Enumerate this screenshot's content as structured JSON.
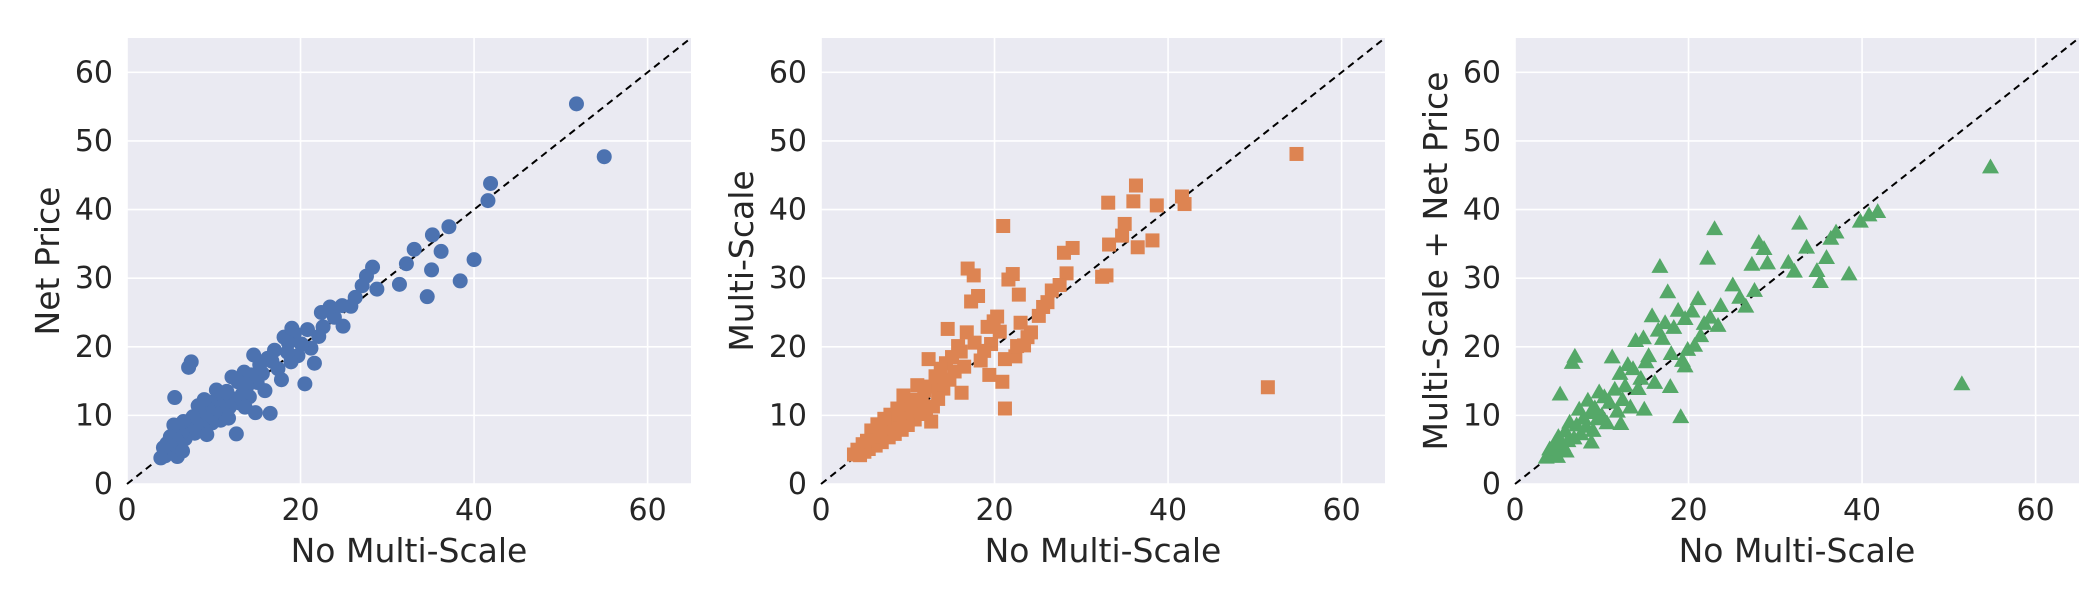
{
  "colors": {
    "background": "#eaeaf2",
    "grid": "#ffffff",
    "diagonal": "#000000"
  },
  "chart_data": [
    {
      "type": "scatter",
      "xlabel": "No Multi-Scale",
      "ylabel": "Net Price",
      "xlim": [
        0,
        65
      ],
      "ylim": [
        0,
        65
      ],
      "xticks": [
        0,
        20,
        40,
        60
      ],
      "yticks": [
        0,
        10,
        20,
        30,
        40,
        50,
        60
      ],
      "grid": true,
      "reference_line": "y = x (dashed)",
      "marker": "circle",
      "color": "#4c72b0",
      "points": [
        [
          51.8,
          55.4
        ],
        [
          55.0,
          47.7
        ],
        [
          41.9,
          43.8
        ],
        [
          41.6,
          41.3
        ],
        [
          40.0,
          32.7
        ],
        [
          38.4,
          29.6
        ],
        [
          37.1,
          37.5
        ],
        [
          36.2,
          33.9
        ],
        [
          35.2,
          36.3
        ],
        [
          35.1,
          31.2
        ],
        [
          34.6,
          27.3
        ],
        [
          33.1,
          34.2
        ],
        [
          32.2,
          32.1
        ],
        [
          31.4,
          29.1
        ],
        [
          28.8,
          28.4
        ],
        [
          28.3,
          31.6
        ],
        [
          27.6,
          30.3
        ],
        [
          27.1,
          28.9
        ],
        [
          26.3,
          27.2
        ],
        [
          25.8,
          25.9
        ],
        [
          24.8,
          26.0
        ],
        [
          24.9,
          23.0
        ],
        [
          23.9,
          24.3
        ],
        [
          23.4,
          25.8
        ],
        [
          22.6,
          22.9
        ],
        [
          22.1,
          21.5
        ],
        [
          21.6,
          17.6
        ],
        [
          21.2,
          19.8
        ],
        [
          20.8,
          22.5
        ],
        [
          20.5,
          14.6
        ],
        [
          20.1,
          20.4
        ],
        [
          19.7,
          18.7
        ],
        [
          19.3,
          22.0
        ],
        [
          18.9,
          17.8
        ],
        [
          18.5,
          19.2
        ],
        [
          18.1,
          21.4
        ],
        [
          17.8,
          15.2
        ],
        [
          17.4,
          16.8
        ],
        [
          17.0,
          19.5
        ],
        [
          16.5,
          10.3
        ],
        [
          16.7,
          17.9
        ],
        [
          16.2,
          18.3
        ],
        [
          15.9,
          13.6
        ],
        [
          15.6,
          16.1
        ],
        [
          15.3,
          17.4
        ],
        [
          15.0,
          14.8
        ],
        [
          14.8,
          10.4
        ],
        [
          14.6,
          18.8
        ],
        [
          14.3,
          15.9
        ],
        [
          14.1,
          12.7
        ],
        [
          13.8,
          14.2
        ],
        [
          13.5,
          16.3
        ],
        [
          13.3,
          13.1
        ],
        [
          13.0,
          11.8
        ],
        [
          12.8,
          14.9
        ],
        [
          12.6,
          7.3
        ],
        [
          12.3,
          12.4
        ],
        [
          12.1,
          15.6
        ],
        [
          11.8,
          11.2
        ],
        [
          11.5,
          13.5
        ],
        [
          11.3,
          10.1
        ],
        [
          11.0,
          12.9
        ],
        [
          10.8,
          9.3
        ],
        [
          10.5,
          11.6
        ],
        [
          10.3,
          13.7
        ],
        [
          10.1,
          10.5
        ],
        [
          9.8,
          8.9
        ],
        [
          9.6,
          11.9
        ],
        [
          9.4,
          10.8
        ],
        [
          9.1,
          9.6
        ],
        [
          8.9,
          12.3
        ],
        [
          8.7,
          8.2
        ],
        [
          8.4,
          10.1
        ],
        [
          8.2,
          11.4
        ],
        [
          8.0,
          8.7
        ],
        [
          7.8,
          7.4
        ],
        [
          7.6,
          9.8
        ],
        [
          7.4,
          17.8
        ],
        [
          7.1,
          17.0
        ],
        [
          6.9,
          8.1
        ],
        [
          6.7,
          6.6
        ],
        [
          6.5,
          9.1
        ],
        [
          6.3,
          7.5
        ],
        [
          6.1,
          5.8
        ],
        [
          5.9,
          7.9
        ],
        [
          5.7,
          6.4
        ],
        [
          5.5,
          12.6
        ],
        [
          5.4,
          8.6
        ],
        [
          5.2,
          5.2
        ],
        [
          5.0,
          6.9
        ],
        [
          4.8,
          4.6
        ],
        [
          4.6,
          5.9
        ],
        [
          4.4,
          4.1
        ],
        [
          4.2,
          5.3
        ],
        [
          3.9,
          3.8
        ],
        [
          5.8,
          4.0
        ],
        [
          6.4,
          4.8
        ],
        [
          9.2,
          7.2
        ],
        [
          11.7,
          9.6
        ],
        [
          13.6,
          11.2
        ],
        [
          18.6,
          20.6
        ],
        [
          19.0,
          22.7
        ],
        [
          22.4,
          25.0
        ]
      ]
    },
    {
      "type": "scatter",
      "xlabel": "No Multi-Scale",
      "ylabel": "Multi-Scale",
      "xlim": [
        0,
        65
      ],
      "ylim": [
        0,
        65
      ],
      "xticks": [
        0,
        20,
        40,
        60
      ],
      "yticks": [
        0,
        10,
        20,
        30,
        40,
        50,
        60
      ],
      "grid": true,
      "reference_line": "y = x (dashed)",
      "marker": "square",
      "color": "#dd8452",
      "points": [
        [
          54.8,
          48.1
        ],
        [
          51.5,
          14.1
        ],
        [
          41.9,
          40.8
        ],
        [
          41.6,
          41.9
        ],
        [
          38.7,
          40.6
        ],
        [
          38.2,
          35.5
        ],
        [
          36.3,
          43.5
        ],
        [
          36.0,
          41.2
        ],
        [
          36.5,
          34.5
        ],
        [
          35.0,
          37.9
        ],
        [
          34.7,
          36.2
        ],
        [
          33.1,
          41.0
        ],
        [
          32.9,
          30.4
        ],
        [
          33.2,
          34.9
        ],
        [
          32.4,
          30.2
        ],
        [
          29.0,
          34.4
        ],
        [
          28.3,
          30.7
        ],
        [
          28.0,
          33.7
        ],
        [
          27.5,
          29.0
        ],
        [
          26.6,
          28.2
        ],
        [
          26.1,
          26.5
        ],
        [
          25.6,
          25.8
        ],
        [
          25.1,
          24.5
        ],
        [
          24.2,
          22.1
        ],
        [
          23.8,
          21.4
        ],
        [
          23.4,
          20.2
        ],
        [
          22.8,
          27.6
        ],
        [
          22.4,
          18.6
        ],
        [
          22.1,
          30.6
        ],
        [
          21.6,
          29.8
        ],
        [
          21.0,
          37.6
        ],
        [
          21.2,
          18.2
        ],
        [
          20.9,
          14.9
        ],
        [
          21.2,
          11.0
        ],
        [
          20.6,
          22.2
        ],
        [
          20.3,
          24.4
        ],
        [
          19.9,
          23.7
        ],
        [
          19.6,
          20.4
        ],
        [
          19.2,
          22.9
        ],
        [
          18.8,
          19.4
        ],
        [
          18.4,
          18.0
        ],
        [
          18.1,
          27.4
        ],
        [
          17.7,
          20.6
        ],
        [
          17.3,
          26.6
        ],
        [
          17.6,
          30.4
        ],
        [
          16.9,
          31.4
        ],
        [
          16.8,
          22.1
        ],
        [
          16.5,
          17.1
        ],
        [
          16.1,
          19.3
        ],
        [
          15.8,
          20.1
        ],
        [
          15.4,
          16.4
        ],
        [
          15.1,
          18.5
        ],
        [
          14.8,
          15.2
        ],
        [
          14.6,
          22.6
        ],
        [
          14.4,
          17.6
        ],
        [
          14.1,
          13.9
        ],
        [
          13.8,
          16.8
        ],
        [
          13.5,
          12.4
        ],
        [
          13.2,
          15.7
        ],
        [
          12.9,
          11.3
        ],
        [
          12.6,
          14.2
        ],
        [
          12.4,
          18.2
        ],
        [
          12.1,
          10.7
        ],
        [
          11.9,
          13.6
        ],
        [
          11.6,
          12.0
        ],
        [
          11.3,
          10.2
        ],
        [
          11.1,
          14.4
        ],
        [
          10.8,
          9.4
        ],
        [
          10.5,
          12.3
        ],
        [
          10.3,
          11.1
        ],
        [
          10.0,
          8.6
        ],
        [
          9.8,
          10.4
        ],
        [
          9.5,
          12.9
        ],
        [
          9.3,
          7.9
        ],
        [
          9.0,
          9.6
        ],
        [
          8.8,
          11.0
        ],
        [
          8.5,
          7.3
        ],
        [
          8.3,
          8.8
        ],
        [
          8.0,
          10.1
        ],
        [
          7.8,
          6.8
        ],
        [
          7.5,
          8.2
        ],
        [
          7.3,
          9.5
        ],
        [
          7.0,
          6.1
        ],
        [
          6.8,
          7.6
        ],
        [
          6.5,
          8.7
        ],
        [
          6.3,
          5.6
        ],
        [
          6.0,
          6.9
        ],
        [
          5.8,
          7.8
        ],
        [
          5.5,
          5.1
        ],
        [
          5.3,
          6.3
        ],
        [
          5.0,
          4.7
        ],
        [
          4.8,
          5.8
        ],
        [
          4.5,
          4.2
        ],
        [
          4.2,
          5.0
        ],
        [
          3.8,
          4.3
        ],
        [
          19.4,
          15.9
        ],
        [
          16.2,
          13.3
        ],
        [
          12.7,
          9.1
        ],
        [
          22.6,
          20.1
        ],
        [
          23.0,
          23.5
        ]
      ]
    },
    {
      "type": "scatter",
      "xlabel": "No Multi-Scale",
      "ylabel": "Multi-Scale + Net Price",
      "xlim": [
        0,
        65
      ],
      "ylim": [
        0,
        65
      ],
      "xticks": [
        0,
        20,
        40,
        60
      ],
      "yticks": [
        0,
        10,
        20,
        30,
        40,
        50,
        60
      ],
      "grid": true,
      "reference_line": "y = x (dashed)",
      "marker": "triangle",
      "color": "#55a868",
      "points": [
        [
          54.8,
          46.2
        ],
        [
          51.5,
          14.6
        ],
        [
          41.8,
          39.7
        ],
        [
          40.8,
          39.2
        ],
        [
          39.8,
          38.3
        ],
        [
          38.5,
          30.6
        ],
        [
          37.0,
          36.7
        ],
        [
          36.4,
          35.8
        ],
        [
          35.9,
          33.0
        ],
        [
          35.2,
          29.5
        ],
        [
          34.8,
          31.1
        ],
        [
          33.6,
          34.5
        ],
        [
          32.8,
          38.0
        ],
        [
          32.2,
          31.0
        ],
        [
          31.5,
          32.3
        ],
        [
          29.1,
          32.2
        ],
        [
          28.7,
          34.3
        ],
        [
          28.1,
          35.2
        ],
        [
          27.6,
          28.2
        ],
        [
          27.3,
          32.0
        ],
        [
          26.6,
          25.9
        ],
        [
          25.9,
          27.2
        ],
        [
          25.1,
          29.0
        ],
        [
          23.7,
          26.0
        ],
        [
          23.4,
          23.1
        ],
        [
          23.0,
          37.2
        ],
        [
          22.5,
          24.3
        ],
        [
          22.2,
          32.9
        ],
        [
          21.8,
          23.4
        ],
        [
          21.4,
          21.6
        ],
        [
          21.1,
          27.0
        ],
        [
          20.7,
          20.2
        ],
        [
          20.4,
          25.2
        ],
        [
          19.9,
          19.6
        ],
        [
          19.6,
          24.1
        ],
        [
          19.3,
          18.0
        ],
        [
          19.6,
          17.2
        ],
        [
          19.1,
          9.8
        ],
        [
          18.8,
          25.3
        ],
        [
          18.3,
          22.8
        ],
        [
          18.0,
          19.0
        ],
        [
          17.6,
          28.0
        ],
        [
          17.3,
          23.5
        ],
        [
          17.0,
          21.2
        ],
        [
          16.5,
          22.4
        ],
        [
          16.7,
          31.7
        ],
        [
          16.1,
          14.8
        ],
        [
          15.8,
          24.5
        ],
        [
          15.4,
          18.7
        ],
        [
          15.1,
          17.8
        ],
        [
          14.8,
          21.3
        ],
        [
          14.5,
          15.4
        ],
        [
          14.2,
          13.9
        ],
        [
          13.9,
          20.9
        ],
        [
          13.6,
          16.8
        ],
        [
          13.3,
          11.2
        ],
        [
          13.0,
          17.4
        ],
        [
          12.7,
          14.3
        ],
        [
          12.4,
          12.3
        ],
        [
          12.1,
          16.1
        ],
        [
          11.8,
          10.6
        ],
        [
          11.5,
          13.8
        ],
        [
          11.2,
          18.5
        ],
        [
          10.9,
          11.9
        ],
        [
          10.6,
          8.9
        ],
        [
          10.3,
          12.7
        ],
        [
          10.0,
          10.0
        ],
        [
          9.7,
          13.4
        ],
        [
          9.5,
          9.5
        ],
        [
          9.2,
          11.1
        ],
        [
          9.0,
          7.8
        ],
        [
          8.7,
          10.4
        ],
        [
          8.4,
          12.2
        ],
        [
          8.2,
          8.4
        ],
        [
          7.9,
          9.6
        ],
        [
          7.6,
          7.3
        ],
        [
          7.4,
          10.9
        ],
        [
          7.1,
          8.6
        ],
        [
          6.9,
          18.6
        ],
        [
          6.8,
          6.7
        ],
        [
          6.6,
          17.7
        ],
        [
          6.3,
          9.0
        ],
        [
          6.1,
          6.3
        ],
        [
          5.8,
          7.7
        ],
        [
          5.5,
          5.7
        ],
        [
          5.2,
          13.1
        ],
        [
          5.0,
          6.9
        ],
        [
          4.8,
          4.9
        ],
        [
          4.6,
          6.0
        ],
        [
          4.3,
          4.4
        ],
        [
          4.0,
          5.1
        ],
        [
          3.6,
          3.9
        ],
        [
          4.9,
          4.0
        ],
        [
          5.9,
          4.8
        ],
        [
          8.8,
          6.1
        ],
        [
          12.2,
          8.8
        ],
        [
          14.9,
          10.9
        ],
        [
          17.9,
          14.2
        ]
      ]
    }
  ]
}
